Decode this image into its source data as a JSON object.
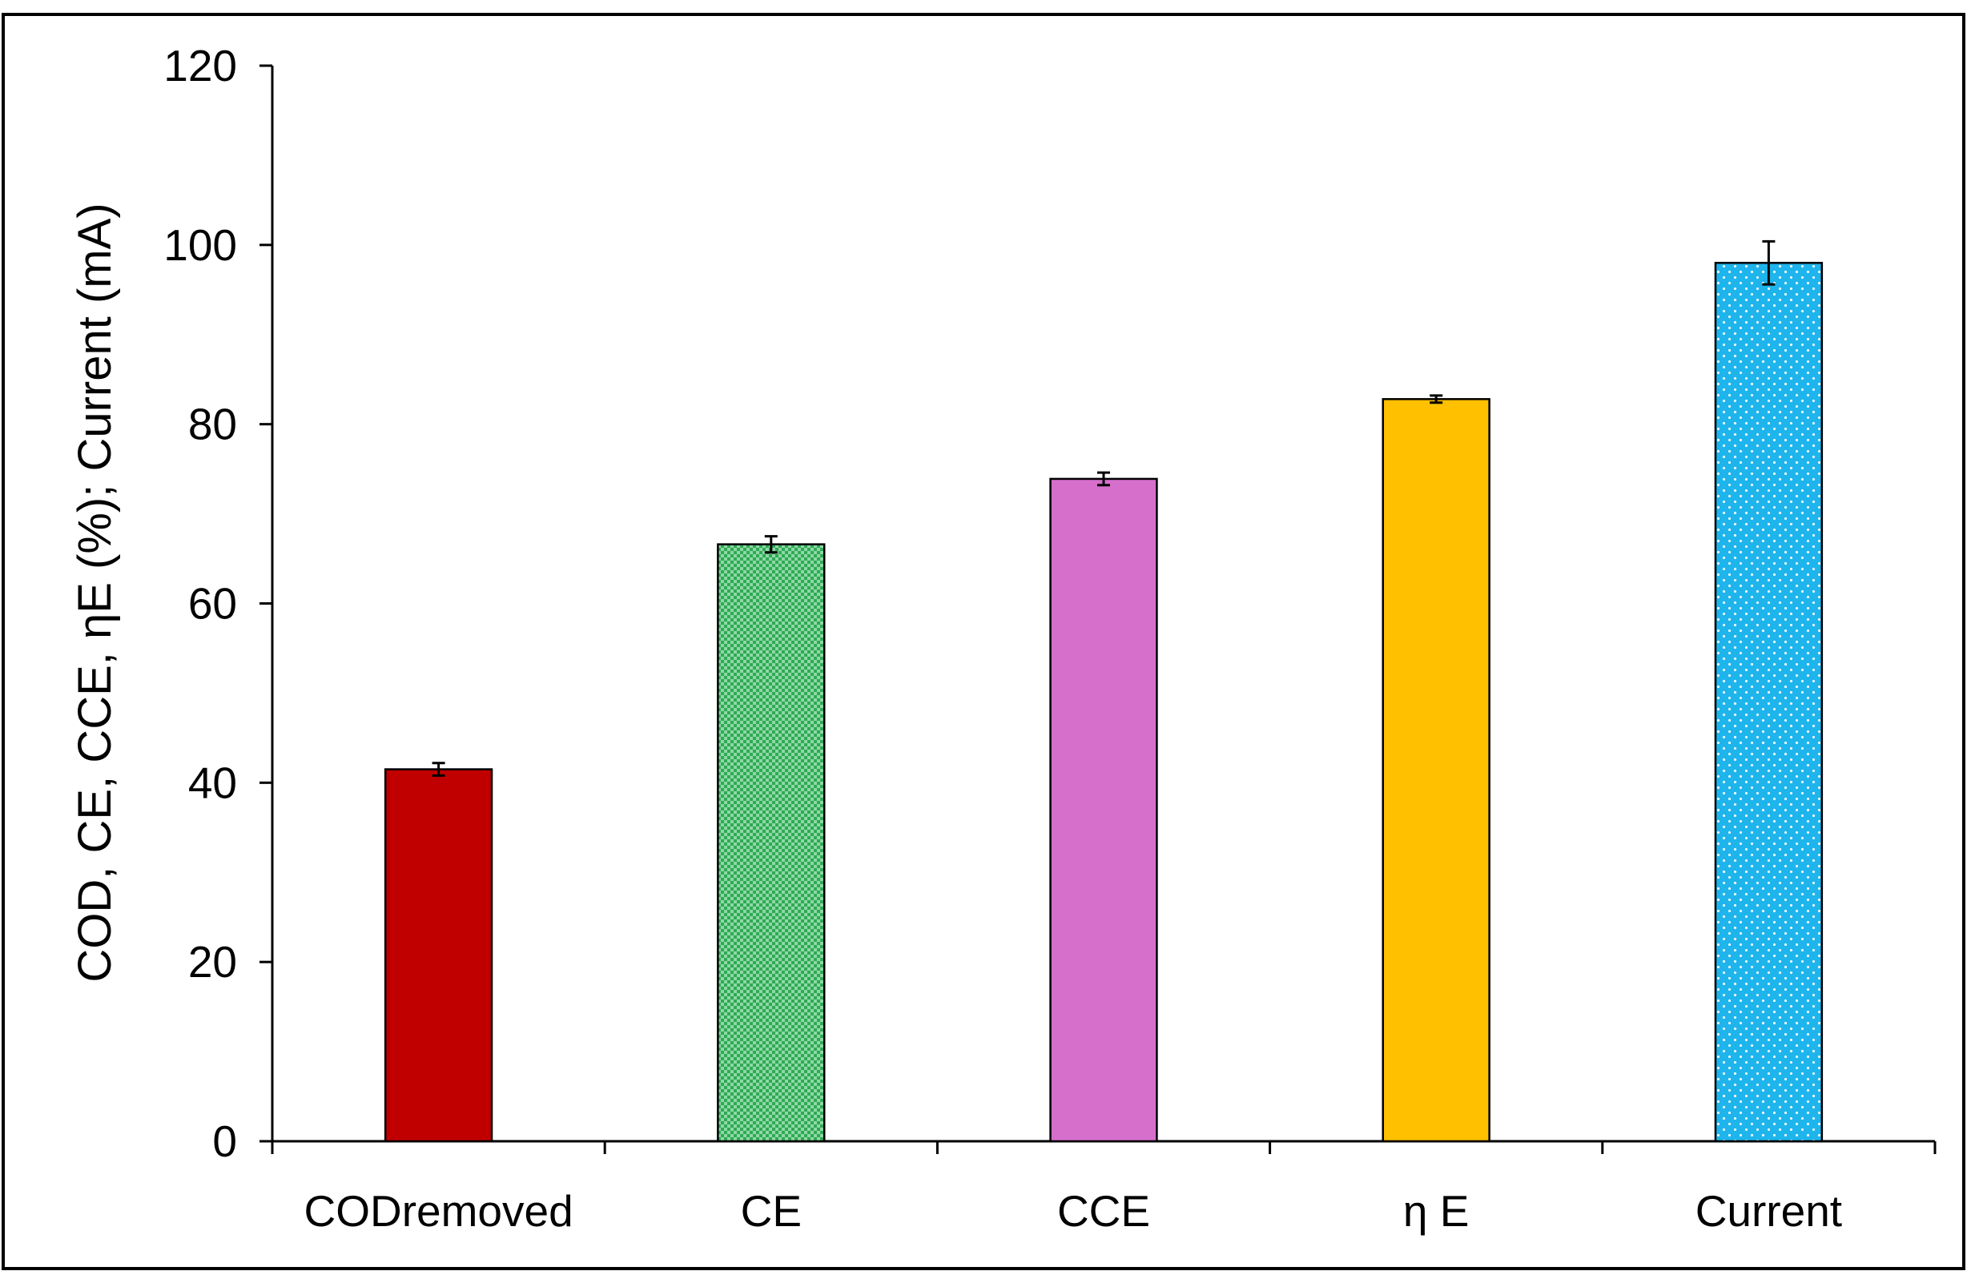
{
  "chart_data": {
    "type": "bar",
    "title": "",
    "xlabel": "",
    "ylabel": "COD, CE, CCE, ηE (%); Current (mA)",
    "categories": [
      "CODremoved",
      "CE",
      "CCE",
      "η E",
      "Current"
    ],
    "values": [
      41.5,
      66.6,
      73.9,
      82.8,
      98.0
    ],
    "errors": [
      0.7,
      0.9,
      0.7,
      0.4,
      2.4
    ],
    "colors": [
      "#C00000",
      "#2EAA55",
      "#D66FCB",
      "#FFC000",
      "#1EB4EC"
    ],
    "patterns": [
      "solid",
      "checker",
      "solid",
      "solid",
      "dots"
    ],
    "ylim": [
      0,
      120
    ],
    "yticks": [
      0,
      20,
      40,
      60,
      80,
      100,
      120
    ],
    "grid": false,
    "legend": "none"
  }
}
